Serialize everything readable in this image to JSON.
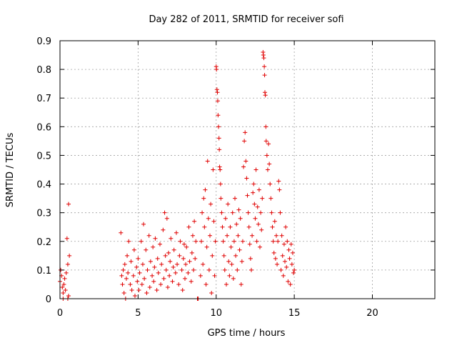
{
  "chart_data": {
    "type": "scatter",
    "title": "Day 282 of 2011, SRMTID for receiver sofi",
    "xlabel": "GPS time / hours",
    "ylabel": "SRMTID / TECUs",
    "xlim": [
      0,
      24
    ],
    "ylim": [
      0,
      0.9
    ],
    "xticks": [
      0,
      5,
      10,
      15,
      20
    ],
    "yticks": [
      0,
      0.1,
      0.2,
      0.3,
      0.4,
      0.5,
      0.6,
      0.7,
      0.8,
      0.9
    ],
    "xtick_labels": [
      "0",
      "5",
      "10",
      "15",
      "20"
    ],
    "ytick_labels": [
      "0",
      "0.1",
      "0.2",
      "0.3",
      "0.4",
      "0.5",
      "0.6",
      "0.7",
      "0.8",
      "0.9"
    ],
    "grid": true,
    "marker": "+",
    "color": "#e00000",
    "series": [
      {
        "name": "SRMTID",
        "points": [
          [
            0.0,
            0.06
          ],
          [
            0.05,
            0.1
          ],
          [
            0.1,
            0.08
          ],
          [
            0.15,
            0.04
          ],
          [
            0.2,
            0.02
          ],
          [
            0.25,
            0.05
          ],
          [
            0.3,
            0.07
          ],
          [
            0.35,
            0.03
          ],
          [
            0.4,
            0.09
          ],
          [
            0.45,
            0.21
          ],
          [
            0.5,
            0.12
          ],
          [
            0.55,
            0.01
          ],
          [
            0.6,
            0.15
          ],
          [
            0.55,
            0.33
          ],
          [
            0.2,
            0.0
          ],
          [
            0.5,
            0.0
          ],
          [
            3.9,
            0.23
          ],
          [
            3.95,
            0.08
          ],
          [
            4.0,
            0.05
          ],
          [
            4.05,
            0.1
          ],
          [
            4.1,
            0.02
          ],
          [
            4.15,
            0.12
          ],
          [
            4.2,
            0.0
          ],
          [
            4.25,
            0.07
          ],
          [
            4.3,
            0.15
          ],
          [
            4.35,
            0.09
          ],
          [
            4.4,
            0.2
          ],
          [
            4.5,
            0.05
          ],
          [
            4.55,
            0.13
          ],
          [
            4.6,
            0.03
          ],
          [
            4.7,
            0.08
          ],
          [
            4.75,
            0.17
          ],
          [
            4.8,
            0.01
          ],
          [
            4.9,
            0.11
          ],
          [
            4.95,
            0.06
          ],
          [
            5.0,
            0.14
          ],
          [
            5.05,
            0.03
          ],
          [
            5.1,
            0.09
          ],
          [
            5.2,
            0.2
          ],
          [
            5.25,
            0.05
          ],
          [
            5.3,
            0.12
          ],
          [
            5.35,
            0.26
          ],
          [
            5.4,
            0.07
          ],
          [
            5.5,
            0.17
          ],
          [
            5.55,
            0.02
          ],
          [
            5.6,
            0.1
          ],
          [
            5.7,
            0.22
          ],
          [
            5.75,
            0.04
          ],
          [
            5.8,
            0.13
          ],
          [
            5.9,
            0.08
          ],
          [
            5.95,
            0.18
          ],
          [
            6.0,
            0.06
          ],
          [
            6.05,
            0.11
          ],
          [
            6.1,
            0.21
          ],
          [
            6.2,
            0.03
          ],
          [
            6.25,
            0.14
          ],
          [
            6.3,
            0.09
          ],
          [
            6.4,
            0.19
          ],
          [
            6.45,
            0.05
          ],
          [
            6.5,
            0.12
          ],
          [
            6.6,
            0.24
          ],
          [
            6.65,
            0.07
          ],
          [
            6.7,
            0.3
          ],
          [
            6.75,
            0.15
          ],
          [
            6.8,
            0.1
          ],
          [
            6.85,
            0.28
          ],
          [
            6.9,
            0.04
          ],
          [
            6.95,
            0.16
          ],
          [
            7.0,
            0.08
          ],
          [
            7.05,
            0.13
          ],
          [
            7.1,
            0.21
          ],
          [
            7.2,
            0.06
          ],
          [
            7.25,
            0.11
          ],
          [
            7.3,
            0.17
          ],
          [
            7.4,
            0.09
          ],
          [
            7.45,
            0.23
          ],
          [
            7.5,
            0.12
          ],
          [
            7.6,
            0.05
          ],
          [
            7.65,
            0.15
          ],
          [
            7.7,
            0.2
          ],
          [
            7.8,
            0.1
          ],
          [
            7.85,
            0.03
          ],
          [
            7.9,
            0.14
          ],
          [
            7.95,
            0.19
          ],
          [
            8.0,
            0.07
          ],
          [
            8.05,
            0.12
          ],
          [
            8.1,
            0.18
          ],
          [
            8.2,
            0.09
          ],
          [
            8.25,
            0.25
          ],
          [
            8.3,
            0.13
          ],
          [
            8.4,
            0.06
          ],
          [
            8.45,
            0.16
          ],
          [
            8.5,
            0.22
          ],
          [
            8.55,
            0.1
          ],
          [
            8.6,
            0.27
          ],
          [
            8.65,
            0.14
          ],
          [
            8.7,
            0.2
          ],
          [
            8.8,
            0.0
          ],
          [
            8.85,
            0.0
          ],
          [
            9.0,
            0.08
          ],
          [
            9.05,
            0.2
          ],
          [
            9.1,
            0.3
          ],
          [
            9.15,
            0.12
          ],
          [
            9.2,
            0.35
          ],
          [
            9.25,
            0.25
          ],
          [
            9.3,
            0.38
          ],
          [
            9.35,
            0.05
          ],
          [
            9.4,
            0.18
          ],
          [
            9.45,
            0.48
          ],
          [
            9.5,
            0.28
          ],
          [
            9.55,
            0.1
          ],
          [
            9.6,
            0.22
          ],
          [
            9.65,
            0.33
          ],
          [
            9.7,
            0.02
          ],
          [
            9.75,
            0.15
          ],
          [
            9.8,
            0.45
          ],
          [
            9.85,
            0.27
          ],
          [
            9.9,
            0.08
          ],
          [
            9.95,
            0.2
          ],
          [
            10.0,
            0.81
          ],
          [
            10.02,
            0.8
          ],
          [
            10.05,
            0.73
          ],
          [
            10.08,
            0.72
          ],
          [
            10.1,
            0.69
          ],
          [
            10.12,
            0.64
          ],
          [
            10.15,
            0.6
          ],
          [
            10.18,
            0.56
          ],
          [
            10.2,
            0.52
          ],
          [
            10.22,
            0.46
          ],
          [
            10.25,
            0.45
          ],
          [
            10.28,
            0.4
          ],
          [
            10.3,
            0.35
          ],
          [
            10.35,
            0.3
          ],
          [
            10.4,
            0.25
          ],
          [
            10.45,
            0.2
          ],
          [
            10.5,
            0.15
          ],
          [
            10.55,
            0.1
          ],
          [
            10.6,
            0.28
          ],
          [
            10.65,
            0.05
          ],
          [
            10.7,
            0.22
          ],
          [
            10.75,
            0.33
          ],
          [
            10.8,
            0.13
          ],
          [
            10.85,
            0.08
          ],
          [
            10.9,
            0.25
          ],
          [
            10.95,
            0.18
          ],
          [
            11.0,
            0.12
          ],
          [
            11.05,
            0.3
          ],
          [
            11.1,
            0.07
          ],
          [
            11.15,
            0.2
          ],
          [
            11.2,
            0.35
          ],
          [
            11.25,
            0.15
          ],
          [
            11.3,
            0.26
          ],
          [
            11.35,
            0.1
          ],
          [
            11.4,
            0.22
          ],
          [
            11.45,
            0.31
          ],
          [
            11.5,
            0.17
          ],
          [
            11.55,
            0.28
          ],
          [
            11.6,
            0.05
          ],
          [
            11.65,
            0.13
          ],
          [
            11.7,
            0.2
          ],
          [
            11.75,
            0.46
          ],
          [
            11.8,
            0.55
          ],
          [
            11.85,
            0.58
          ],
          [
            11.9,
            0.48
          ],
          [
            11.95,
            0.42
          ],
          [
            12.0,
            0.36
          ],
          [
            12.05,
            0.3
          ],
          [
            12.1,
            0.25
          ],
          [
            12.15,
            0.19
          ],
          [
            12.2,
            0.14
          ],
          [
            12.25,
            0.1
          ],
          [
            12.3,
            0.22
          ],
          [
            12.35,
            0.37
          ],
          [
            12.4,
            0.4
          ],
          [
            12.45,
            0.33
          ],
          [
            12.5,
            0.28
          ],
          [
            12.55,
            0.45
          ],
          [
            12.6,
            0.2
          ],
          [
            12.65,
            0.32
          ],
          [
            12.7,
            0.26
          ],
          [
            12.75,
            0.38
          ],
          [
            12.8,
            0.18
          ],
          [
            12.85,
            0.3
          ],
          [
            12.9,
            0.24
          ],
          [
            12.95,
            0.35
          ],
          [
            13.0,
            0.86
          ],
          [
            13.02,
            0.85
          ],
          [
            13.05,
            0.84
          ],
          [
            13.08,
            0.81
          ],
          [
            13.1,
            0.78
          ],
          [
            13.12,
            0.72
          ],
          [
            13.15,
            0.71
          ],
          [
            13.18,
            0.6
          ],
          [
            13.2,
            0.55
          ],
          [
            13.25,
            0.5
          ],
          [
            13.3,
            0.45
          ],
          [
            13.35,
            0.54
          ],
          [
            13.4,
            0.47
          ],
          [
            13.45,
            0.4
          ],
          [
            13.5,
            0.35
          ],
          [
            13.55,
            0.3
          ],
          [
            13.6,
            0.25
          ],
          [
            13.65,
            0.2
          ],
          [
            13.7,
            0.16
          ],
          [
            13.75,
            0.27
          ],
          [
            13.8,
            0.14
          ],
          [
            13.85,
            0.22
          ],
          [
            13.9,
            0.12
          ],
          [
            13.95,
            0.2
          ],
          [
            14.0,
            0.41
          ],
          [
            14.05,
            0.38
          ],
          [
            14.1,
            0.3
          ],
          [
            14.15,
            0.1
          ],
          [
            14.2,
            0.22
          ],
          [
            14.25,
            0.15
          ],
          [
            14.3,
            0.08
          ],
          [
            14.35,
            0.19
          ],
          [
            14.4,
            0.13
          ],
          [
            14.45,
            0.25
          ],
          [
            14.5,
            0.11
          ],
          [
            14.55,
            0.2
          ],
          [
            14.6,
            0.06
          ],
          [
            14.65,
            0.17
          ],
          [
            14.7,
            0.14
          ],
          [
            14.75,
            0.05
          ],
          [
            14.8,
            0.19
          ],
          [
            14.85,
            0.12
          ],
          [
            14.9,
            0.16
          ],
          [
            14.95,
            0.09
          ],
          [
            15.0,
            0.1
          ]
        ]
      }
    ]
  }
}
